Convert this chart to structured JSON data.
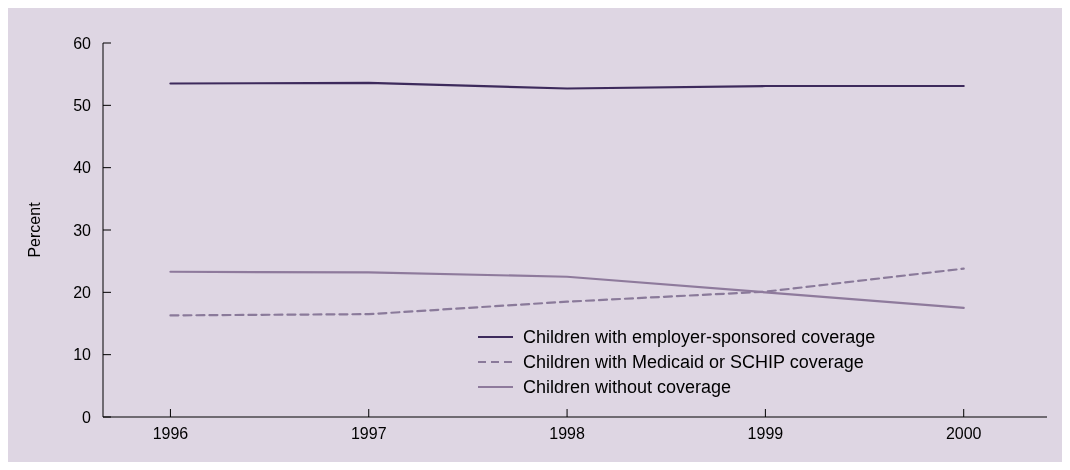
{
  "chart_data": {
    "type": "line",
    "ylabel": "Percent",
    "x": [
      1996,
      1997,
      1998,
      1999,
      2000
    ],
    "xlim": [
      1995.66,
      2000.42
    ],
    "xticks": [
      1996,
      1997,
      1998,
      1999,
      2000
    ],
    "ylim": [
      0,
      60
    ],
    "yticks": [
      0,
      10,
      20,
      30,
      40,
      50,
      60
    ],
    "grid": false,
    "legend": "bottom",
    "series": [
      {
        "name": "Children with employer-sponsored coverage",
        "color": "#3d2a5c",
        "values": [
          53.5,
          53.6,
          52.7,
          53.1,
          53.1
        ],
        "line_style": "solid"
      },
      {
        "name": "Children with Medicaid or SCHIP coverage",
        "color": "#8a7a9a",
        "values": [
          16.3,
          16.5,
          18.5,
          20.1,
          23.8
        ],
        "line_style": "dashed"
      },
      {
        "name": "Children without coverage",
        "color": "#8e7a9c",
        "values": [
          23.3,
          23.2,
          22.5,
          20.0,
          17.5
        ],
        "line_style": "solid"
      }
    ]
  }
}
